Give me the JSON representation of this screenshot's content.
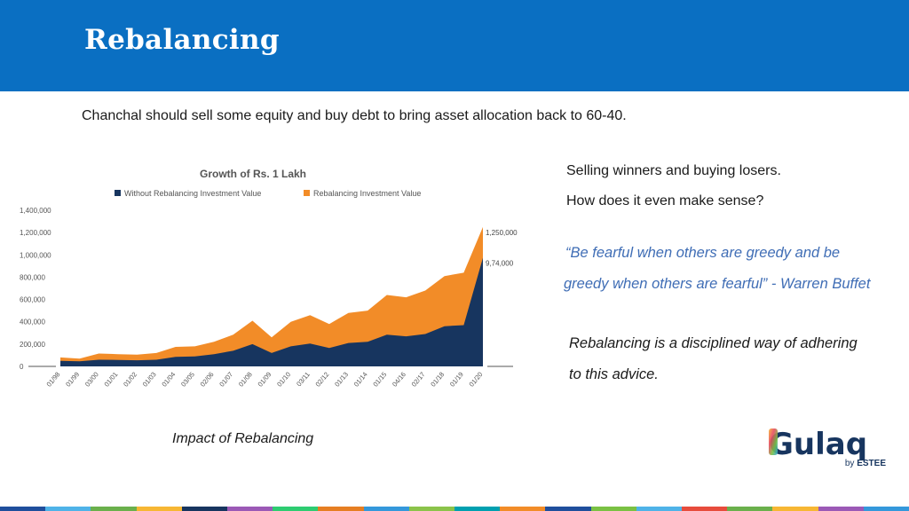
{
  "slide": {
    "title": "Rebalancing",
    "intro": "Chanchal should sell some equity and buy debt to bring asset allocation back to 60-40.",
    "caption": "Impact of Rebalancing",
    "side_line1": "Selling winners and buying losers.",
    "side_line2": "How does it even make sense?",
    "quote_line1": "“Be fearful when others are greedy and be",
    "quote_line2": "greedy when others are fearful” - Warren Buffet",
    "advice_line1": "Rebalancing is a disciplined way of adhering",
    "advice_line2": "to this advice."
  },
  "logo": {
    "text": "Gulaq",
    "sub_prefix": "by ",
    "sub_brand": "ESTEE"
  },
  "chart_data": {
    "type": "area",
    "title": "Growth of Rs. 1 Lakh",
    "legend_position": "top",
    "categories": [
      "01/98",
      "01/99",
      "03/00",
      "01/01",
      "01/02",
      "01/03",
      "01/04",
      "03/05",
      "02/06",
      "01/07",
      "01/08",
      "01/09",
      "01/10",
      "03/11",
      "02/12",
      "01/13",
      "01/14",
      "01/15",
      "04/16",
      "02/17",
      "01/18",
      "01/19",
      "01/20"
    ],
    "y_ticks": [
      "1,400,000",
      "1,200,000",
      "1,000,000",
      "800,000",
      "600,000",
      "400,000",
      "200,000",
      "0"
    ],
    "ylim": [
      0,
      1400000
    ],
    "series": [
      {
        "name": "Without Rebalancing Investment Value",
        "color": "#17355f",
        "values": [
          50000,
          45000,
          60000,
          58000,
          55000,
          60000,
          85000,
          90000,
          110000,
          140000,
          200000,
          120000,
          180000,
          205000,
          165000,
          210000,
          220000,
          285000,
          270000,
          290000,
          360000,
          370000,
          974000
        ]
      },
      {
        "name": "Rebalancing Investment Value",
        "color": "#f28c28",
        "values": [
          80000,
          70000,
          115000,
          110000,
          105000,
          120000,
          175000,
          180000,
          220000,
          285000,
          410000,
          260000,
          400000,
          460000,
          380000,
          480000,
          500000,
          640000,
          620000,
          680000,
          810000,
          840000,
          1250000
        ]
      }
    ],
    "data_labels": [
      {
        "text": "1,250,000",
        "series": 1
      },
      {
        "text": "9,74,000",
        "series": 0
      }
    ]
  },
  "bottom_strip_colors": [
    "#1f4e9c",
    "#4fb3e8",
    "#6ab04c",
    "#f7b733",
    "#17355f",
    "#9b59b6",
    "#2ecc71",
    "#e67e22",
    "#3498db",
    "#8bc34a",
    "#00a0b0",
    "#f28c28",
    "#1f4e9c",
    "#7ac143",
    "#4fb3e8",
    "#e74c3c",
    "#6ab04c",
    "#f7b733",
    "#9b59b6",
    "#3498db"
  ]
}
